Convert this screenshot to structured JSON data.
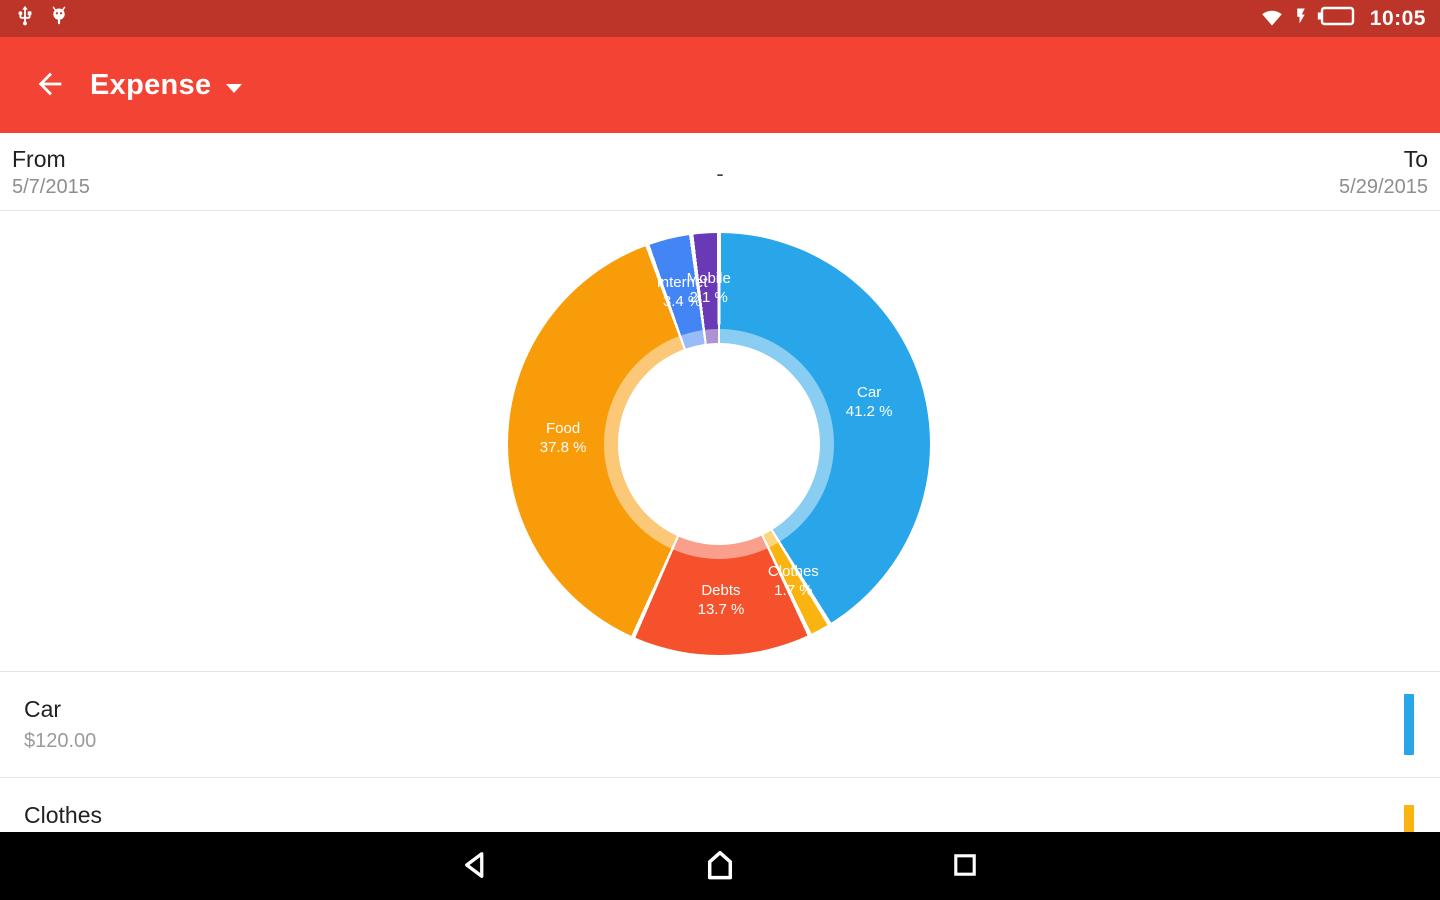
{
  "colors": {
    "status_bar": "#BD3529",
    "app_bar": "#F24335",
    "nav_bar": "#000000",
    "divider": "#E4E4E4"
  },
  "status_bar": {
    "time": "10:05",
    "icons_left": [
      "usb-icon",
      "android-debug-icon"
    ],
    "icons_right": [
      "wifi-icon",
      "charging-icon",
      "battery-icon"
    ]
  },
  "app_bar": {
    "title": "Expense"
  },
  "date_range": {
    "from_label": "From",
    "from_value": "5/7/2015",
    "separator": "-",
    "to_label": "To",
    "to_value": "5/29/2015"
  },
  "chart_data": {
    "type": "pie",
    "style": "donut",
    "title": "",
    "direction": "clockwise",
    "start_angle_deg": 0,
    "value_suffix": " %",
    "slices": [
      {
        "label": "Car",
        "percent": 41.2,
        "color": "#29A5EA"
      },
      {
        "label": "Clothes",
        "percent": 1.7,
        "color": "#F9B412"
      },
      {
        "label": "Debts",
        "percent": 13.7,
        "color": "#F4512C"
      },
      {
        "label": "Food",
        "percent": 37.8,
        "color": "#F89C09"
      },
      {
        "label": "Internet",
        "percent": 3.4,
        "color": "#4385F4"
      },
      {
        "label": "Mobile",
        "percent": 2.1,
        "color": "#6A39B5"
      }
    ]
  },
  "list": {
    "items": [
      {
        "name": "Car",
        "amount": "$120.00",
        "color": "#29A5EA"
      },
      {
        "name": "Clothes",
        "color": "#F9B412"
      }
    ]
  },
  "nav_bar": {
    "items": [
      "back",
      "home",
      "recents"
    ]
  }
}
